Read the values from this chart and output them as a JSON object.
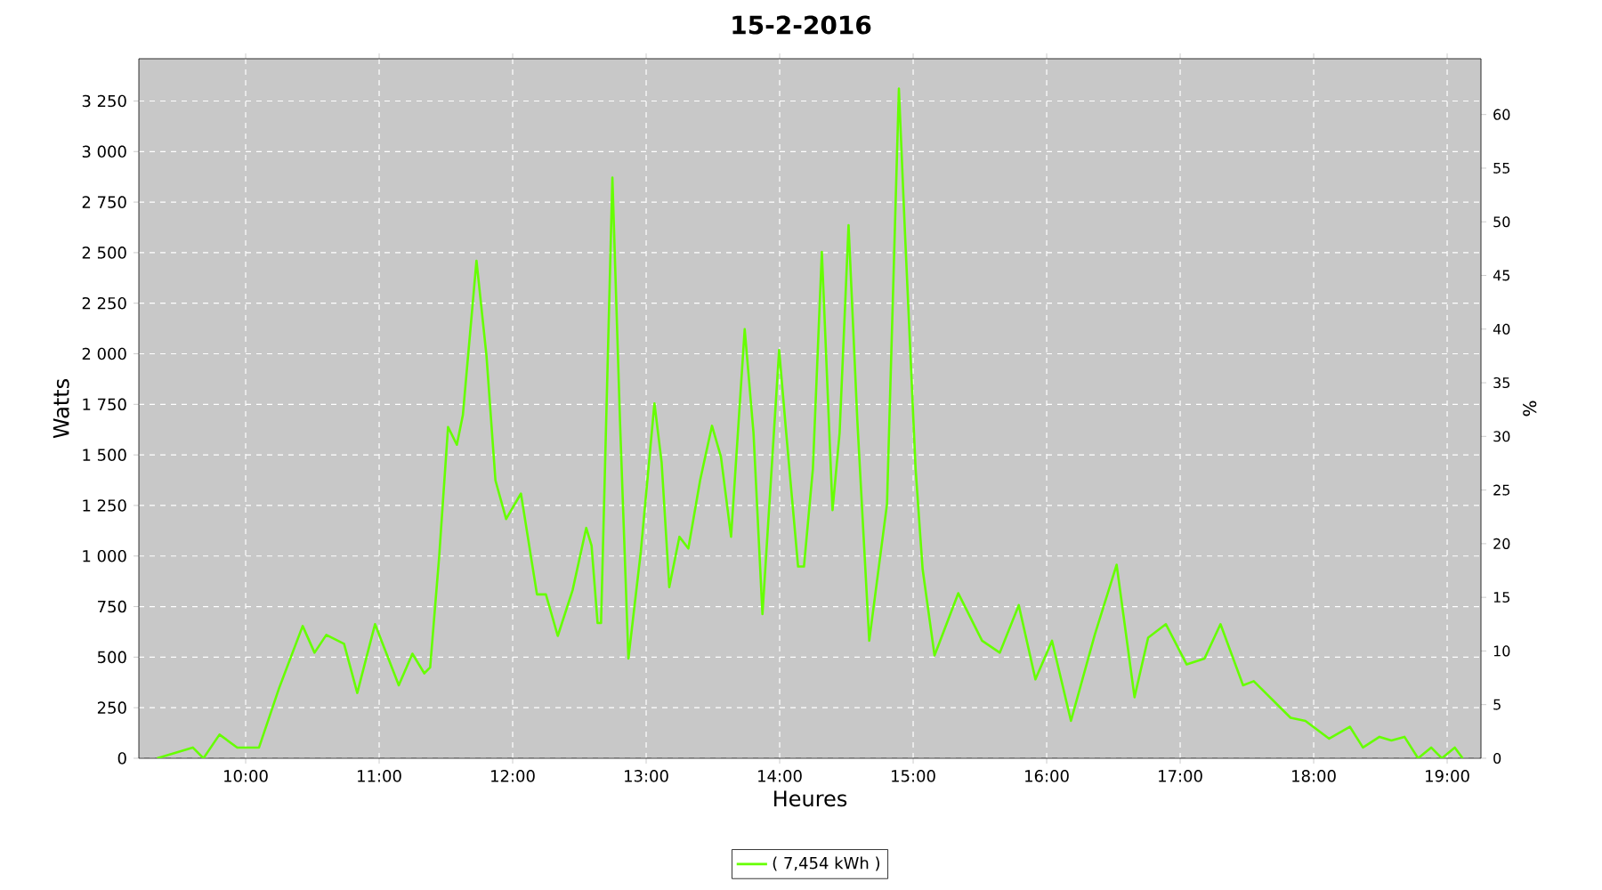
{
  "chart_data": {
    "type": "line",
    "title": "15-2-2016",
    "xlabel": "Heures",
    "ylabel": "Watts",
    "y2label": "%",
    "xlim": [
      9.2,
      19.253
    ],
    "ylim": [
      0,
      3459
    ],
    "y2lim": [
      0,
      65.2
    ],
    "xticks": [
      {
        "value": 10,
        "label": "10:00"
      },
      {
        "value": 11,
        "label": "11:00"
      },
      {
        "value": 12,
        "label": "12:00"
      },
      {
        "value": 13,
        "label": "13:00"
      },
      {
        "value": 14,
        "label": "14:00"
      },
      {
        "value": 15,
        "label": "15:00"
      },
      {
        "value": 16,
        "label": "16:00"
      },
      {
        "value": 17,
        "label": "17:00"
      },
      {
        "value": 18,
        "label": "18:00"
      },
      {
        "value": 19,
        "label": "19:00"
      }
    ],
    "yticks": [
      0,
      250,
      500,
      750,
      {
        "value": 1000,
        "label": "1 000"
      },
      {
        "value": 1250,
        "label": "1 250"
      },
      {
        "value": 1500,
        "label": "1 500"
      },
      {
        "value": 1750,
        "label": "1 750"
      },
      {
        "value": 2000,
        "label": "2 000"
      },
      {
        "value": 2250,
        "label": "2 250"
      },
      {
        "value": 2500,
        "label": "2 500"
      },
      {
        "value": 2750,
        "label": "2 750"
      },
      {
        "value": 3000,
        "label": "3 000"
      },
      {
        "value": 3250,
        "label": "3 250"
      }
    ],
    "y2ticks": [
      0,
      5,
      10,
      15,
      20,
      25,
      30,
      35,
      40,
      45,
      50,
      55,
      60
    ],
    "grid": true,
    "legend": "bottom",
    "marker": "none",
    "line_style": "solid",
    "series": [
      {
        "name": "( 7,454 kWh )",
        "color": "#66ff00",
        "x": [
          9.337,
          9.604,
          9.684,
          9.804,
          9.937,
          10.1,
          10.25,
          10.427,
          10.516,
          10.604,
          10.737,
          10.836,
          10.969,
          11.147,
          11.249,
          11.338,
          11.382,
          11.449,
          11.516,
          11.582,
          11.627,
          11.729,
          11.804,
          11.871,
          11.951,
          12.062,
          12.182,
          12.249,
          12.338,
          12.449,
          12.551,
          12.591,
          12.636,
          12.662,
          12.747,
          12.804,
          12.867,
          12.96,
          13.062,
          13.116,
          13.173,
          13.249,
          13.316,
          13.404,
          13.493,
          13.56,
          13.636,
          13.738,
          13.804,
          13.871,
          13.996,
          14.049,
          14.138,
          14.182,
          14.249,
          14.316,
          14.396,
          14.449,
          14.516,
          14.582,
          14.671,
          14.804,
          14.893,
          14.938,
          15.018,
          15.071,
          15.16,
          15.338,
          15.516,
          15.649,
          15.791,
          15.916,
          16.04,
          16.182,
          16.36,
          16.524,
          16.658,
          16.76,
          16.893,
          17.049,
          17.182,
          17.302,
          17.471,
          17.551,
          17.827,
          17.938,
          18.116,
          18.271,
          18.369,
          18.493,
          18.582,
          18.68,
          18.782,
          18.88,
          18.96,
          19.057,
          19.116
        ],
        "values": [
          0,
          53,
          0,
          117,
          53,
          53,
          346,
          654,
          522,
          610,
          566,
          323,
          663,
          361,
          517,
          420,
          449,
          993,
          1638,
          1550,
          1697,
          2460,
          1990,
          1374,
          1183,
          1309,
          810,
          810,
          605,
          831,
          1139,
          1051,
          669,
          669,
          2871,
          1667,
          493,
          1022,
          1755,
          1462,
          846,
          1095,
          1037,
          1374,
          1644,
          1491,
          1095,
          2122,
          1609,
          713,
          2019,
          1609,
          948,
          948,
          1433,
          2504,
          1227,
          1609,
          2636,
          1667,
          581,
          1257,
          3311,
          2607,
          1433,
          934,
          508,
          816,
          581,
          522,
          757,
          390,
          581,
          185,
          610,
          957,
          302,
          596,
          663,
          464,
          493,
          663,
          361,
          381,
          200,
          185,
          97,
          156,
          53,
          106,
          88,
          106,
          0,
          53,
          0,
          53,
          0
        ]
      }
    ]
  }
}
